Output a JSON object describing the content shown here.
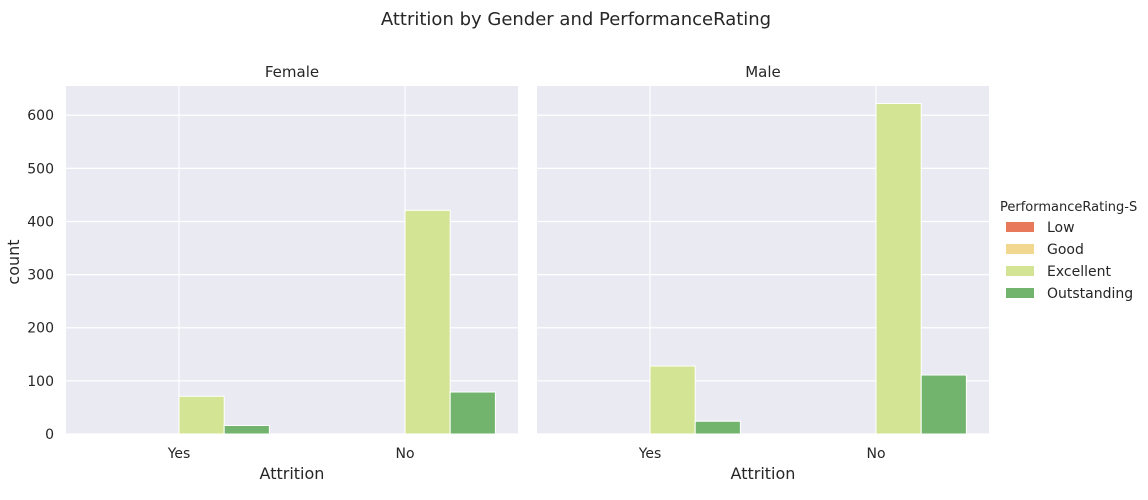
{
  "chart_data": {
    "type": "bar",
    "title": "Attrition by Gender and PerformanceRating",
    "xlabel": "Attrition",
    "ylabel": "count",
    "ylim": [
      0,
      655
    ],
    "yticks": [
      0,
      100,
      200,
      300,
      400,
      500,
      600
    ],
    "categories": [
      "Yes",
      "No"
    ],
    "grid": true,
    "legend_position": "right",
    "legend": {
      "title": "PerformanceRating-S",
      "entries": [
        {
          "name": "Low",
          "color": "#e8795a"
        },
        {
          "name": "Good",
          "color": "#f1d78f"
        },
        {
          "name": "Excellent",
          "color": "#d4e495"
        },
        {
          "name": "Outstanding",
          "color": "#72b46d"
        }
      ]
    },
    "panels": [
      {
        "title": "Female",
        "series": [
          {
            "name": "Excellent",
            "values": [
              71,
              421
            ]
          },
          {
            "name": "Outstanding",
            "values": [
              16,
              79
            ]
          }
        ]
      },
      {
        "title": "Male",
        "series": [
          {
            "name": "Excellent",
            "values": [
              128,
              622
            ]
          },
          {
            "name": "Outstanding",
            "values": [
              24,
              111
            ]
          }
        ]
      }
    ]
  }
}
